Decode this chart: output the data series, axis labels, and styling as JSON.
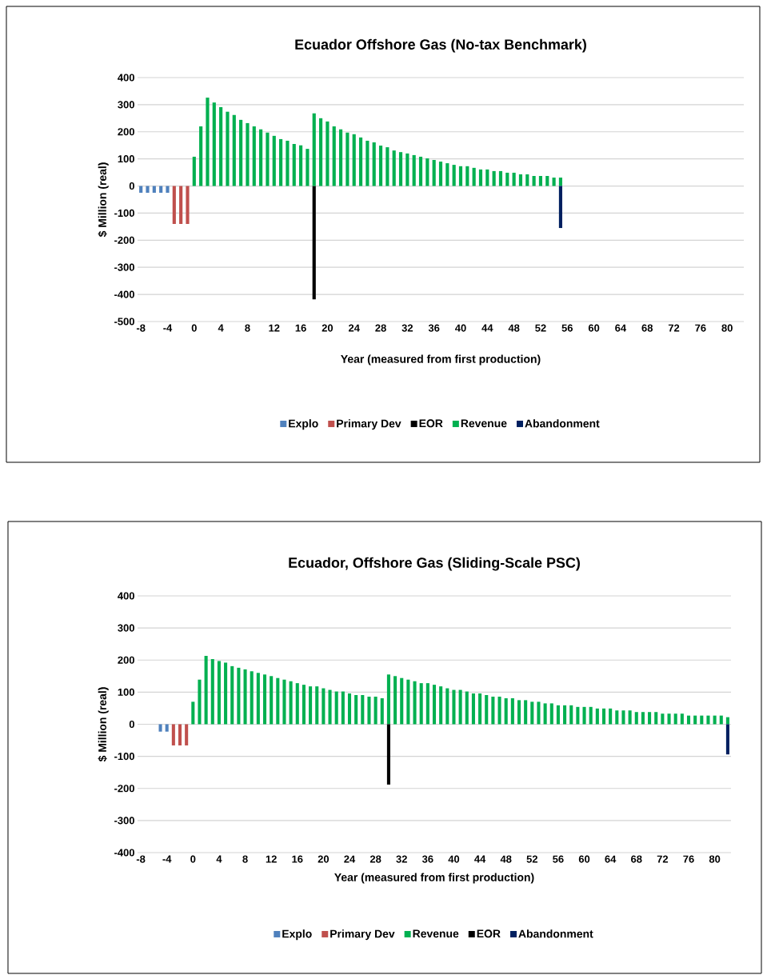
{
  "chart_data": [
    {
      "type": "bar",
      "title": "Ecuador Offshore Gas (No-tax Benchmark)",
      "xlabel": "Year (measured from first production)",
      "ylabel": "$ Million  (real)",
      "xlim": [
        -8.5,
        82.5
      ],
      "xticks": [
        -8,
        -4,
        0,
        4,
        8,
        12,
        16,
        20,
        24,
        28,
        32,
        36,
        40,
        44,
        48,
        52,
        56,
        60,
        64,
        68,
        72,
        76,
        80
      ],
      "ylim": [
        -500,
        400
      ],
      "yticks": [
        -500,
        -400,
        -300,
        -200,
        -100,
        0,
        100,
        200,
        300,
        400
      ],
      "grid": "y",
      "legend": "bottom",
      "series": [
        {
          "name": "Explo",
          "color": "#4f81bd",
          "x": [
            -8,
            -7,
            -6,
            -5,
            -4
          ],
          "values": [
            -25,
            -25,
            -25,
            -25,
            -25
          ]
        },
        {
          "name": "Primary Dev",
          "color": "#c0504d",
          "x": [
            -3,
            -2,
            -1
          ],
          "values": [
            -140,
            -140,
            -140
          ]
        },
        {
          "name": "EOR",
          "color": "#000000",
          "x": [
            18
          ],
          "values": [
            -418
          ]
        },
        {
          "name": "Revenue",
          "color": "#00b050",
          "x": [
            0,
            1,
            2,
            3,
            4,
            5,
            6,
            7,
            8,
            9,
            10,
            11,
            12,
            13,
            14,
            15,
            16,
            17,
            18,
            19,
            20,
            21,
            22,
            23,
            24,
            25,
            26,
            27,
            28,
            29,
            30,
            31,
            32,
            33,
            34,
            35,
            36,
            37,
            38,
            39,
            40,
            41,
            42,
            43,
            44,
            45,
            46,
            47,
            48,
            49,
            50,
            51,
            52,
            53,
            54,
            55
          ],
          "values": [
            108,
            220,
            326,
            308,
            291,
            274,
            262,
            244,
            232,
            220,
            209,
            197,
            185,
            173,
            167,
            155,
            150,
            137,
            268,
            250,
            238,
            220,
            209,
            197,
            191,
            179,
            167,
            161,
            149,
            143,
            131,
            125,
            120,
            114,
            108,
            102,
            96,
            90,
            84,
            78,
            73,
            73,
            67,
            61,
            61,
            55,
            55,
            49,
            49,
            43,
            43,
            37,
            37,
            37,
            31,
            31
          ]
        },
        {
          "name": "Abandonment",
          "color": "#002060",
          "x": [
            55
          ],
          "values": [
            -155
          ]
        }
      ]
    },
    {
      "type": "bar",
      "title": "Ecuador, Offshore Gas (Sliding-Scale PSC)",
      "xlabel": "Year (measured from first production)",
      "ylabel": "$ Million  (real)",
      "xlim": [
        -8.5,
        82.5
      ],
      "xticks": [
        -8,
        -4,
        0,
        4,
        8,
        12,
        16,
        20,
        24,
        28,
        32,
        36,
        40,
        44,
        48,
        52,
        56,
        60,
        64,
        68,
        72,
        76,
        80
      ],
      "ylim": [
        -400,
        400
      ],
      "yticks": [
        -400,
        -300,
        -200,
        -100,
        0,
        100,
        200,
        300,
        400
      ],
      "grid": "y",
      "legend": "bottom",
      "series": [
        {
          "name": "Explo",
          "color": "#4f81bd",
          "x": [
            -5,
            -4
          ],
          "values": [
            -23,
            -23
          ]
        },
        {
          "name": "Primary Dev",
          "color": "#c0504d",
          "x": [
            -3,
            -2,
            -1
          ],
          "values": [
            -66,
            -66,
            -66
          ]
        },
        {
          "name": "Revenue",
          "color": "#00b050",
          "x": [
            0,
            1,
            2,
            3,
            4,
            5,
            6,
            7,
            8,
            9,
            10,
            11,
            12,
            13,
            14,
            15,
            16,
            17,
            18,
            19,
            20,
            21,
            22,
            23,
            24,
            25,
            26,
            27,
            28,
            29,
            30,
            31,
            32,
            33,
            34,
            35,
            36,
            37,
            38,
            39,
            40,
            41,
            42,
            43,
            44,
            45,
            46,
            47,
            48,
            49,
            50,
            51,
            52,
            53,
            54,
            55,
            56,
            57,
            58,
            59,
            60,
            61,
            62,
            63,
            64,
            65,
            66,
            67,
            68,
            69,
            70,
            71,
            72,
            73,
            74,
            75,
            76,
            77,
            78,
            79,
            80,
            81,
            82
          ],
          "values": [
            70,
            139,
            213,
            203,
            197,
            192,
            181,
            176,
            171,
            165,
            160,
            155,
            150,
            144,
            139,
            134,
            128,
            123,
            118,
            118,
            112,
            107,
            102,
            102,
            96,
            91,
            91,
            86,
            86,
            81,
            155,
            150,
            144,
            139,
            134,
            128,
            128,
            123,
            118,
            112,
            107,
            107,
            102,
            96,
            96,
            91,
            86,
            86,
            81,
            81,
            75,
            75,
            70,
            70,
            65,
            65,
            59,
            59,
            59,
            54,
            54,
            54,
            49,
            49,
            49,
            43,
            43,
            43,
            38,
            38,
            38,
            38,
            33,
            33,
            33,
            33,
            27,
            27,
            27,
            27,
            27,
            27,
            22
          ]
        },
        {
          "name": "EOR",
          "color": "#000000",
          "x": [
            30
          ],
          "values": [
            -188
          ]
        },
        {
          "name": "Abandonment",
          "color": "#002060",
          "x": [
            82
          ],
          "values": [
            -94
          ]
        }
      ]
    }
  ]
}
